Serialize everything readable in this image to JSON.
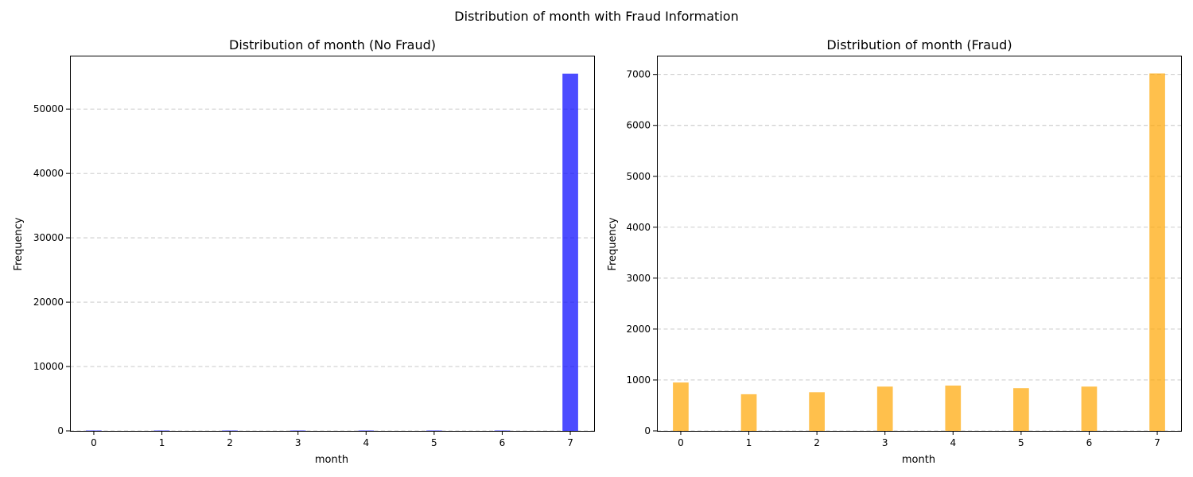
{
  "figure": {
    "suptitle": "Distribution of month with Fraud Information"
  },
  "chart_data": [
    {
      "type": "bar",
      "title": "Distribution of month (No Fraud)",
      "xlabel": "month",
      "ylabel": "Frequency",
      "color": "#0000ff",
      "opacity": 0.7,
      "categories": [
        0,
        1,
        2,
        3,
        4,
        5,
        6,
        7
      ],
      "values": [
        60,
        60,
        60,
        60,
        60,
        60,
        60,
        55500
      ],
      "xlim": [
        -0.35,
        7.35
      ],
      "ylim": [
        0,
        58300
      ],
      "xticks": [
        0,
        1,
        2,
        3,
        4,
        5,
        6,
        7
      ],
      "yticks": [
        0,
        10000,
        20000,
        30000,
        40000,
        50000
      ],
      "grid": "y, dashed",
      "legend": "none"
    },
    {
      "type": "bar",
      "title": "Distribution of month (Fraud)",
      "xlabel": "month",
      "ylabel": "Frequency",
      "color": "#ffa500",
      "opacity": 0.7,
      "categories": [
        0,
        1,
        2,
        3,
        4,
        5,
        6,
        7
      ],
      "values": [
        950,
        720,
        760,
        870,
        890,
        840,
        870,
        7020
      ],
      "xlim": [
        -0.35,
        7.35
      ],
      "ylim": [
        0,
        7370
      ],
      "xticks": [
        0,
        1,
        2,
        3,
        4,
        5,
        6,
        7
      ],
      "yticks": [
        0,
        1000,
        2000,
        3000,
        4000,
        5000,
        6000,
        7000
      ],
      "grid": "y, dashed",
      "legend": "none"
    }
  ]
}
